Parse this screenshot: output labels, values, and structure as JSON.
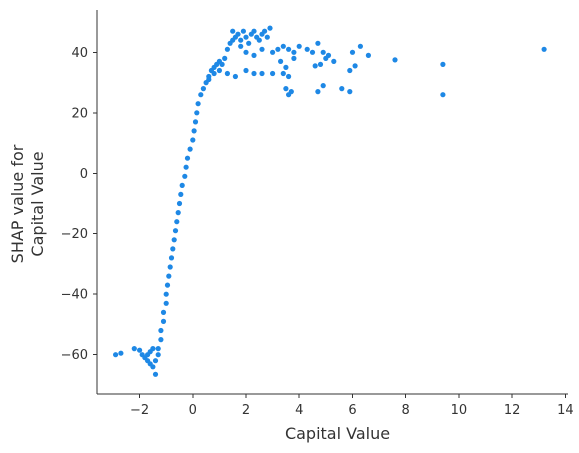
{
  "chart_data": {
    "type": "scatter",
    "xlabel": "Capital Value",
    "ylabel": [
      "SHAP value for",
      "Capital Value"
    ],
    "xlim": [
      -3.6,
      14.1
    ],
    "ylim": [
      -73,
      54
    ],
    "xticks": [
      -2,
      0,
      2,
      4,
      6,
      8,
      10,
      12,
      14
    ],
    "xtick_labels": [
      "−2",
      "0",
      "2",
      "4",
      "6",
      "8",
      "10",
      "12",
      "14"
    ],
    "yticks": [
      -60,
      -40,
      -20,
      0,
      20,
      40
    ],
    "ytick_labels": [
      "−60",
      "−40",
      "−20",
      "0",
      "20",
      "40"
    ],
    "grid": false,
    "point_color": "#1e88e5",
    "series": [
      {
        "points": [
          [
            -2.9,
            -60
          ],
          [
            -2.7,
            -59.5
          ],
          [
            -2.2,
            -58
          ],
          [
            -2.0,
            -58.5
          ],
          [
            -1.9,
            -60
          ],
          [
            -1.8,
            -61
          ],
          [
            -1.7,
            -62
          ],
          [
            -1.6,
            -63
          ],
          [
            -1.5,
            -64
          ],
          [
            -1.4,
            -66.5
          ],
          [
            -1.4,
            -62
          ],
          [
            -1.5,
            -58
          ],
          [
            -1.6,
            -59
          ],
          [
            -1.7,
            -60
          ],
          [
            -1.3,
            -60
          ],
          [
            -1.3,
            -58
          ],
          [
            -1.2,
            -55
          ],
          [
            -1.2,
            -52
          ],
          [
            -1.1,
            -49
          ],
          [
            -1.1,
            -46
          ],
          [
            -1.0,
            -43
          ],
          [
            -1.0,
            -40
          ],
          [
            -0.95,
            -37
          ],
          [
            -0.9,
            -34
          ],
          [
            -0.85,
            -31
          ],
          [
            -0.8,
            -28
          ],
          [
            -0.75,
            -25
          ],
          [
            -0.7,
            -22
          ],
          [
            -0.65,
            -19
          ],
          [
            -0.6,
            -16
          ],
          [
            -0.55,
            -13
          ],
          [
            -0.5,
            -10
          ],
          [
            -0.45,
            -7
          ],
          [
            -0.4,
            -4
          ],
          [
            -0.3,
            -1
          ],
          [
            -0.25,
            2
          ],
          [
            -0.2,
            5
          ],
          [
            -0.1,
            8
          ],
          [
            0.0,
            11
          ],
          [
            0.05,
            14
          ],
          [
            0.1,
            17
          ],
          [
            0.15,
            20
          ],
          [
            0.2,
            23
          ],
          [
            0.3,
            26
          ],
          [
            0.4,
            28
          ],
          [
            0.5,
            30
          ],
          [
            0.6,
            32
          ],
          [
            0.7,
            34
          ],
          [
            0.8,
            35
          ],
          [
            0.9,
            36
          ],
          [
            1.0,
            37
          ],
          [
            1.1,
            36
          ],
          [
            1.2,
            38
          ],
          [
            1.3,
            41
          ],
          [
            1.4,
            43
          ],
          [
            1.5,
            44
          ],
          [
            1.6,
            45
          ],
          [
            1.7,
            46
          ],
          [
            1.8,
            44
          ],
          [
            1.9,
            47
          ],
          [
            2.0,
            45
          ],
          [
            2.1,
            43
          ],
          [
            2.2,
            46
          ],
          [
            2.3,
            47
          ],
          [
            2.4,
            45
          ],
          [
            2.5,
            44
          ],
          [
            2.6,
            46
          ],
          [
            2.7,
            47
          ],
          [
            2.8,
            45
          ],
          [
            2.9,
            48
          ],
          [
            1.5,
            47
          ],
          [
            1.8,
            42
          ],
          [
            2.0,
            40
          ],
          [
            2.3,
            39
          ],
          [
            2.6,
            41
          ],
          [
            3.0,
            40
          ],
          [
            3.2,
            41
          ],
          [
            3.4,
            42
          ],
          [
            3.6,
            41
          ],
          [
            3.8,
            40
          ],
          [
            4.0,
            42
          ],
          [
            4.3,
            41
          ],
          [
            4.5,
            40
          ],
          [
            4.7,
            43
          ],
          [
            4.9,
            40
          ],
          [
            5.1,
            39
          ],
          [
            5.3,
            37
          ],
          [
            6.0,
            40
          ],
          [
            6.3,
            42
          ],
          [
            6.6,
            39
          ],
          [
            7.6,
            37.5
          ],
          [
            9.4,
            36
          ],
          [
            9.4,
            26
          ],
          [
            13.2,
            41
          ],
          [
            1.0,
            34
          ],
          [
            1.3,
            33
          ],
          [
            1.6,
            32
          ],
          [
            2.0,
            34
          ],
          [
            2.3,
            33
          ],
          [
            2.6,
            33
          ],
          [
            3.0,
            33
          ],
          [
            3.4,
            33
          ],
          [
            3.6,
            32
          ],
          [
            3.5,
            28
          ],
          [
            3.6,
            26
          ],
          [
            3.7,
            27
          ],
          [
            4.7,
            27
          ],
          [
            4.9,
            29
          ],
          [
            5.6,
            28
          ],
          [
            5.9,
            27
          ],
          [
            5.9,
            34
          ],
          [
            6.1,
            35.5
          ],
          [
            4.6,
            35.5
          ],
          [
            4.8,
            36
          ],
          [
            5.0,
            38
          ],
          [
            3.8,
            38
          ],
          [
            3.3,
            37
          ],
          [
            3.5,
            35
          ],
          [
            0.6,
            31
          ],
          [
            0.8,
            33
          ]
        ]
      }
    ]
  }
}
